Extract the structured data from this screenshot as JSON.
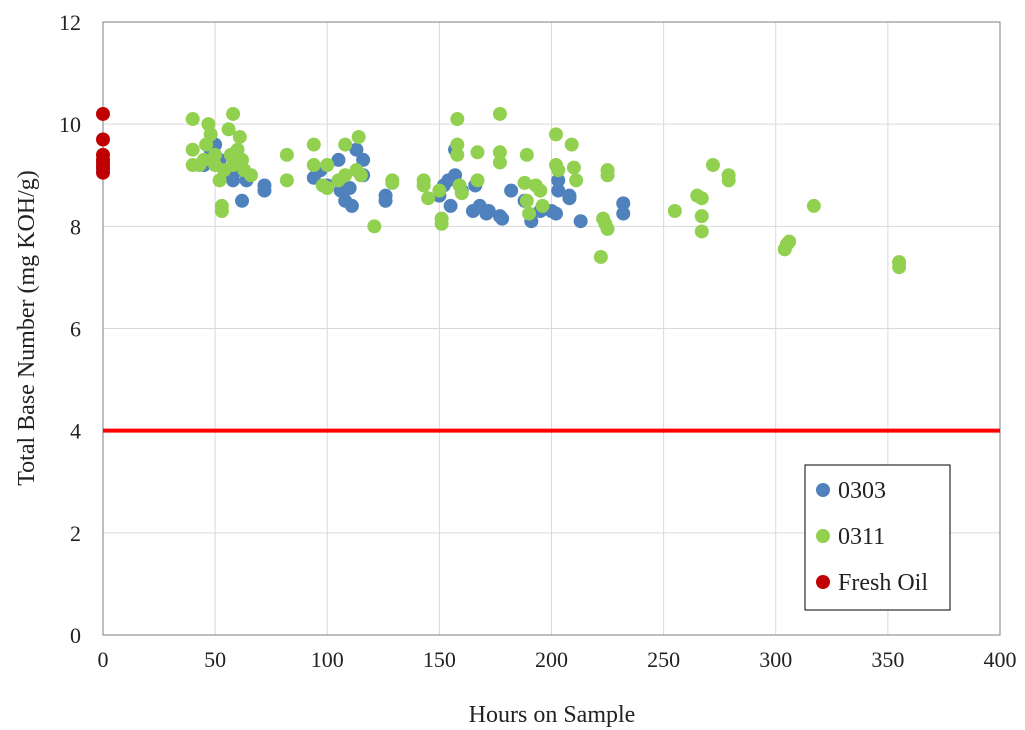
{
  "chart_data": {
    "type": "scatter",
    "title": "",
    "xlabel": "Hours on Sample",
    "ylabel": "Total Base Number (mg KOH/g)",
    "xlim": [
      0,
      400
    ],
    "ylim": [
      0,
      12
    ],
    "xticks": [
      0,
      50,
      100,
      150,
      200,
      250,
      300,
      350,
      400
    ],
    "yticks": [
      0,
      2,
      4,
      6,
      8,
      10,
      12
    ],
    "grid": true,
    "legend_position": "bottom-right",
    "reference_line": {
      "y": 4,
      "color": "#ff0000"
    },
    "series": [
      {
        "name": "0303",
        "color": "#4f81bd",
        "points": [
          [
            0,
            9.1
          ],
          [
            0,
            9.2
          ],
          [
            45,
            9.2
          ],
          [
            48,
            9.5
          ],
          [
            50,
            9.6
          ],
          [
            52,
            9.3
          ],
          [
            55,
            9.0
          ],
          [
            58,
            8.9
          ],
          [
            60,
            9.1
          ],
          [
            62,
            8.5
          ],
          [
            64,
            8.9
          ],
          [
            72,
            8.7
          ],
          [
            72,
            8.8
          ],
          [
            94,
            8.95
          ],
          [
            97,
            9.1
          ],
          [
            100,
            8.8
          ],
          [
            105,
            9.3
          ],
          [
            106,
            8.7
          ],
          [
            108,
            8.5
          ],
          [
            110,
            8.75
          ],
          [
            111,
            8.4
          ],
          [
            113,
            9.5
          ],
          [
            116,
            9.3
          ],
          [
            116,
            9.0
          ],
          [
            126,
            8.6
          ],
          [
            126,
            8.5
          ],
          [
            150,
            8.6
          ],
          [
            152,
            8.8
          ],
          [
            154,
            8.9
          ],
          [
            155,
            8.4
          ],
          [
            157,
            9.0
          ],
          [
            157,
            9.5
          ],
          [
            160,
            8.7
          ],
          [
            165,
            8.3
          ],
          [
            166,
            8.8
          ],
          [
            168,
            8.4
          ],
          [
            171,
            8.25
          ],
          [
            172,
            8.3
          ],
          [
            177,
            8.2
          ],
          [
            178,
            8.15
          ],
          [
            182,
            8.7
          ],
          [
            188,
            8.5
          ],
          [
            191,
            8.1
          ],
          [
            195,
            8.3
          ],
          [
            200,
            8.3
          ],
          [
            202,
            8.25
          ],
          [
            203,
            8.7
          ],
          [
            203,
            8.9
          ],
          [
            208,
            8.6
          ],
          [
            208,
            8.55
          ],
          [
            213,
            8.1
          ],
          [
            232,
            8.45
          ],
          [
            232,
            8.25
          ]
        ]
      },
      {
        "name": "0311",
        "color": "#92d050",
        "points": [
          [
            40,
            10.1
          ],
          [
            40,
            9.5
          ],
          [
            40,
            9.2
          ],
          [
            43,
            9.2
          ],
          [
            45,
            9.3
          ],
          [
            46,
            9.6
          ],
          [
            47,
            10.0
          ],
          [
            48,
            9.8
          ],
          [
            50,
            9.4
          ],
          [
            50,
            9.2
          ],
          [
            52,
            8.9
          ],
          [
            53,
            8.4
          ],
          [
            53,
            8.3
          ],
          [
            54,
            9.1
          ],
          [
            56,
            9.9
          ],
          [
            57,
            9.4
          ],
          [
            58,
            10.2
          ],
          [
            58,
            9.2
          ],
          [
            60,
            9.5
          ],
          [
            61,
            9.75
          ],
          [
            62,
            9.3
          ],
          [
            63,
            9.1
          ],
          [
            66,
            9.0
          ],
          [
            82,
            9.4
          ],
          [
            82,
            8.9
          ],
          [
            94,
            9.6
          ],
          [
            94,
            9.2
          ],
          [
            98,
            8.8
          ],
          [
            100,
            9.2
          ],
          [
            100,
            8.75
          ],
          [
            105,
            8.9
          ],
          [
            108,
            9.6
          ],
          [
            108,
            9.0
          ],
          [
            113,
            9.1
          ],
          [
            114,
            9.75
          ],
          [
            115,
            9.0
          ],
          [
            121,
            8.0
          ],
          [
            129,
            8.9
          ],
          [
            129,
            8.85
          ],
          [
            143,
            8.9
          ],
          [
            143,
            8.8
          ],
          [
            145,
            8.55
          ],
          [
            150,
            8.7
          ],
          [
            151,
            8.15
          ],
          [
            151,
            8.05
          ],
          [
            158,
            10.1
          ],
          [
            158,
            9.6
          ],
          [
            158,
            9.4
          ],
          [
            159,
            8.8
          ],
          [
            160,
            8.65
          ],
          [
            167,
            9.45
          ],
          [
            167,
            8.9
          ],
          [
            177,
            10.2
          ],
          [
            177,
            9.45
          ],
          [
            177,
            9.25
          ],
          [
            188,
            8.85
          ],
          [
            189,
            9.4
          ],
          [
            189,
            8.5
          ],
          [
            190,
            8.25
          ],
          [
            193,
            8.8
          ],
          [
            195,
            8.7
          ],
          [
            196,
            8.4
          ],
          [
            202,
            9.8
          ],
          [
            202,
            9.2
          ],
          [
            203,
            9.1
          ],
          [
            209,
            9.6
          ],
          [
            210,
            9.15
          ],
          [
            211,
            8.9
          ],
          [
            222,
            7.4
          ],
          [
            223,
            8.15
          ],
          [
            224,
            8.05
          ],
          [
            225,
            7.95
          ],
          [
            225,
            9.1
          ],
          [
            225,
            9.0
          ],
          [
            255,
            8.3
          ],
          [
            265,
            8.6
          ],
          [
            267,
            8.55
          ],
          [
            267,
            8.2
          ],
          [
            267,
            7.9
          ],
          [
            272,
            9.2
          ],
          [
            279,
            9.0
          ],
          [
            279,
            8.9
          ],
          [
            304,
            7.55
          ],
          [
            305,
            7.65
          ],
          [
            306,
            7.7
          ],
          [
            317,
            8.4
          ],
          [
            355,
            7.3
          ],
          [
            355,
            7.2
          ]
        ]
      },
      {
        "name": "Fresh Oil",
        "color": "#c00000",
        "points": [
          [
            0,
            10.2
          ],
          [
            0,
            9.7
          ],
          [
            0,
            9.4
          ],
          [
            0,
            9.3
          ],
          [
            0,
            9.25
          ],
          [
            0,
            9.15
          ],
          [
            0,
            9.05
          ]
        ]
      }
    ]
  }
}
